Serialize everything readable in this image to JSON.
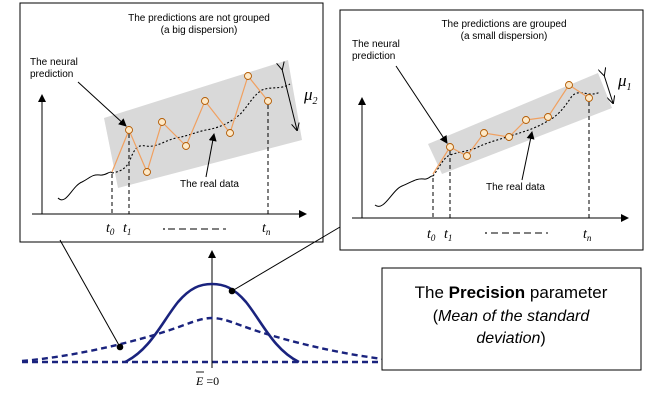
{
  "left_panel": {
    "caption_line1": "The predictions are not grouped",
    "caption_line2": "(a big dispersion)",
    "neural_label_line1": "The neural",
    "neural_label_line2": "prediction",
    "real_data_label": "The real data",
    "mu_symbol": "μ",
    "mu_subscript": "2",
    "t0": "t",
    "t0_sub": "0",
    "t1": "t",
    "t1_sub": "1",
    "tn": "t",
    "tn_sub": "n"
  },
  "right_panel": {
    "caption_line1": "The predictions are grouped",
    "caption_line2": "(a small dispersion)",
    "neural_label_line1": "The neural",
    "neural_label_line2": "prediction",
    "real_data_label": "The real data",
    "mu_symbol": "μ",
    "mu_subscript": "1",
    "t0": "t",
    "t0_sub": "0",
    "t1": "t",
    "t1_sub": "1",
    "tn": "t",
    "tn_sub": "n"
  },
  "precision_box": {
    "line1_prefix": "The ",
    "line1_bold": "Precision",
    "line1_suffix": " parameter",
    "line2_open": "(",
    "line2_italic": "Mean of the standard",
    "line3_italic": "deviation",
    "line3_close": ")"
  },
  "axis_label": {
    "e_symbol": "E",
    "eq_zero": " =0"
  },
  "colors": {
    "prediction_line": "#f0a060",
    "prediction_marker_fill": "#fde9c8",
    "marker_stroke": "#b35a00",
    "band_fill": "#d9d9d9",
    "bell_curve": "#1a237e",
    "ink": "#000000"
  }
}
